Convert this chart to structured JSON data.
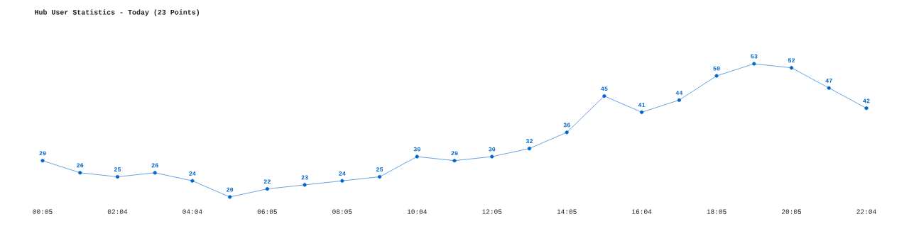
{
  "chart_data": {
    "type": "line",
    "title": "Hub User Statistics - Today (23 Points)",
    "categories": [
      "00:05",
      null,
      "02:04",
      null,
      "04:04",
      null,
      "06:05",
      null,
      "08:05",
      null,
      "10:04",
      null,
      "12:05",
      null,
      "14:05",
      null,
      "16:04",
      null,
      "18:05",
      null,
      "20:05",
      null,
      "22:04"
    ],
    "series": [
      {
        "color": "#0066cc",
        "values": [
          29,
          26,
          25,
          26,
          24,
          20,
          22,
          23,
          24,
          25,
          30,
          29,
          30,
          32,
          36,
          45,
          41,
          44,
          50,
          53,
          52,
          47,
          42
        ]
      }
    ],
    "data_labels": true,
    "marker": "circle",
    "line_style": "solid",
    "grid": false
  }
}
